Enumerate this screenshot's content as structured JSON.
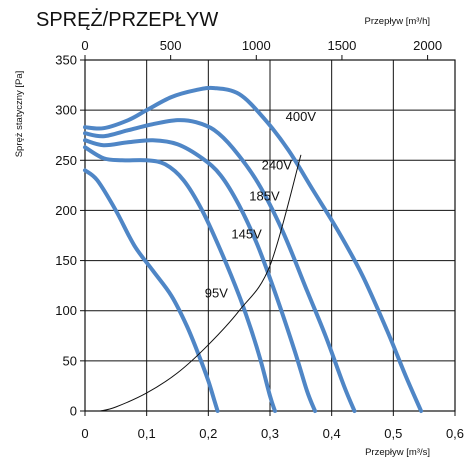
{
  "chart_data": {
    "type": "line",
    "title": "SPRĘŻ/PRZEPŁYW",
    "ylabel": "Spręż statyczny [Pa]",
    "xlabel_bottom": "Przepływ [m³/s]",
    "xlabel_top": "Przepływ [m³/h]",
    "xlim": [
      0,
      0.6
    ],
    "ylim": [
      0,
      350
    ],
    "xlim_top": [
      0,
      2160
    ],
    "x_ticks": [
      0,
      0.1,
      0.2,
      0.3,
      0.4,
      0.5,
      0.6
    ],
    "x_tick_labels": [
      "0",
      "0,1",
      "0,2",
      "0,3",
      "0,4",
      "0,5",
      "0,6"
    ],
    "x_top_ticks": [
      0,
      500,
      1000,
      1500,
      2000
    ],
    "x_top_tick_labels": [
      "0",
      "500",
      "1000",
      "1500",
      "2000"
    ],
    "y_ticks": [
      0,
      50,
      100,
      150,
      200,
      250,
      300,
      350
    ],
    "y_tick_labels": [
      "0",
      "50",
      "100",
      "150",
      "200",
      "250",
      "300",
      "350"
    ],
    "grid": true,
    "legend": "none",
    "series_color": "#4f86c6",
    "system_curve_color": "#111111",
    "series": [
      {
        "name": "95V",
        "x": [
          0,
          0.02,
          0.05,
          0.08,
          0.11,
          0.14,
          0.165,
          0.185,
          0.2,
          0.21,
          0.215
        ],
        "y": [
          240,
          230,
          200,
          165,
          140,
          115,
          85,
          55,
          30,
          10,
          0
        ]
      },
      {
        "name": "145V",
        "x": [
          0,
          0.03,
          0.06,
          0.1,
          0.13,
          0.16,
          0.19,
          0.22,
          0.25,
          0.27,
          0.285,
          0.3,
          0.308
        ],
        "y": [
          263,
          252,
          250,
          250,
          246,
          230,
          200,
          160,
          115,
          80,
          50,
          15,
          0
        ]
      },
      {
        "name": "185V",
        "x": [
          0,
          0.03,
          0.07,
          0.11,
          0.15,
          0.19,
          0.22,
          0.25,
          0.28,
          0.31,
          0.34,
          0.36,
          0.373
        ],
        "y": [
          270,
          265,
          268,
          270,
          266,
          252,
          235,
          205,
          165,
          115,
          60,
          20,
          0
        ]
      },
      {
        "name": "240V",
        "x": [
          0,
          0.03,
          0.07,
          0.11,
          0.15,
          0.18,
          0.21,
          0.24,
          0.28,
          0.32,
          0.36,
          0.39,
          0.42,
          0.437
        ],
        "y": [
          277,
          274,
          280,
          286,
          290,
          288,
          280,
          262,
          228,
          180,
          120,
          75,
          25,
          0
        ]
      },
      {
        "name": "400V",
        "x": [
          0,
          0.03,
          0.07,
          0.1,
          0.14,
          0.18,
          0.21,
          0.25,
          0.29,
          0.33,
          0.37,
          0.41,
          0.45,
          0.49,
          0.52,
          0.545
        ],
        "y": [
          283,
          282,
          290,
          300,
          313,
          320,
          322,
          316,
          292,
          260,
          220,
          180,
          135,
          80,
          35,
          0
        ]
      },
      {
        "name": "",
        "x": [
          0.025,
          0.05,
          0.1,
          0.15,
          0.2,
          0.25,
          0.3,
          0.35
        ],
        "y": [
          0,
          4,
          18,
          38,
          66,
          100,
          145,
          255
        ]
      }
    ],
    "curve_labels": [
      {
        "text": "95V",
        "x": 0.213,
        "y": 113
      },
      {
        "text": "145V",
        "x": 0.262,
        "y": 172
      },
      {
        "text": "185V",
        "x": 0.291,
        "y": 210
      },
      {
        "text": "240V",
        "x": 0.311,
        "y": 241
      },
      {
        "text": "400V",
        "x": 0.35,
        "y": 289
      }
    ]
  }
}
